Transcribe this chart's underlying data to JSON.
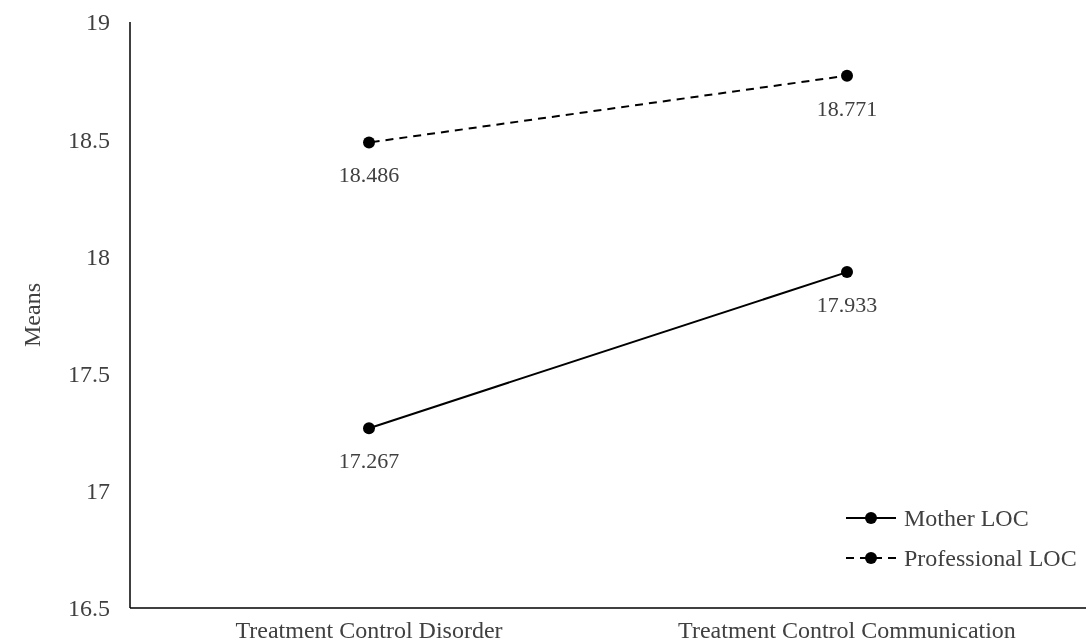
{
  "chart_data": {
    "type": "line",
    "ylabel": "Means",
    "categories": [
      "Treatment Control Disorder",
      "Treatment Control Communication"
    ],
    "series": [
      {
        "name": "Mother LOC",
        "color": "#000000",
        "values": [
          17.267,
          17.933
        ],
        "line_style": "solid"
      },
      {
        "name": "Professional LOC",
        "color": "#000000",
        "values": [
          18.486,
          18.771
        ],
        "line_style": "dashed"
      }
    ],
    "ylim": [
      16.5,
      19
    ],
    "yticks": [
      {
        "value": 16.5,
        "label": "16.5"
      },
      {
        "value": 17,
        "label": "17"
      },
      {
        "value": 17.5,
        "label": "17.5"
      },
      {
        "value": 18,
        "label": "18"
      },
      {
        "value": 18.5,
        "label": "18.5"
      },
      {
        "value": 19,
        "label": "19"
      }
    ],
    "marker": "circle",
    "data_labels": true,
    "legend": "bottom right",
    "grid": false
  }
}
